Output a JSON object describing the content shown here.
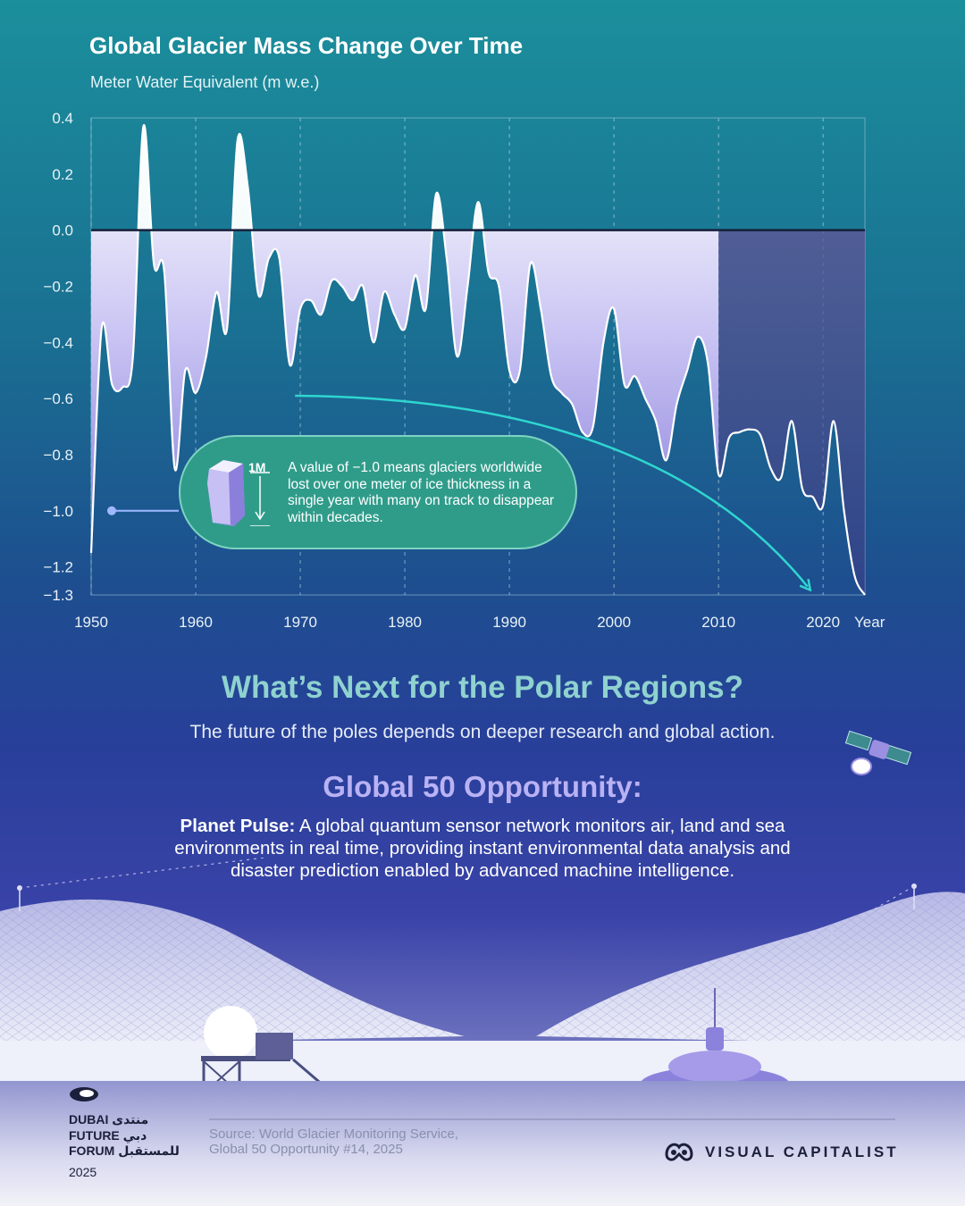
{
  "chart_data": {
    "type": "area",
    "title": "Global Glacier Mass Change Over Time",
    "subtitle": "Meter Water Equivalent (m w.e.)",
    "ylabel": "",
    "xlabel": "Year",
    "xlim": [
      1950,
      2024
    ],
    "ylim": [
      -1.3,
      0.4
    ],
    "x_ticks": [
      "1950",
      "1960",
      "1970",
      "1980",
      "1990",
      "2000",
      "2010",
      "2020"
    ],
    "y_ticks": [
      {
        "value": 0.4,
        "label": "0.4"
      },
      {
        "value": 0.2,
        "label": "0.2"
      },
      {
        "value": 0.0,
        "label": "0.0"
      },
      {
        "value": -0.2,
        "label": "−0.2"
      },
      {
        "value": -0.4,
        "label": "−0.4"
      },
      {
        "value": -0.6,
        "label": "−0.6"
      },
      {
        "value": -0.8,
        "label": "−0.8"
      },
      {
        "value": -1.0,
        "label": "−1.0"
      },
      {
        "value": -1.2,
        "label": "−1.2"
      },
      {
        "value": -1.3,
        "label": "−1.3"
      }
    ],
    "grid": "vertical-dashed",
    "highlight_range": [
      2010,
      2024
    ],
    "series": [
      {
        "values": [
          [
            1950,
            -1.15
          ],
          [
            1951,
            -0.35
          ],
          [
            1952,
            -0.55
          ],
          [
            1953,
            -0.56
          ],
          [
            1954,
            -0.45
          ],
          [
            1955,
            0.37
          ],
          [
            1956,
            -0.12
          ],
          [
            1957,
            -0.15
          ],
          [
            1958,
            -0.85
          ],
          [
            1959,
            -0.5
          ],
          [
            1960,
            -0.58
          ],
          [
            1961,
            -0.45
          ],
          [
            1962,
            -0.22
          ],
          [
            1963,
            -0.35
          ],
          [
            1964,
            0.32
          ],
          [
            1965,
            0.15
          ],
          [
            1966,
            -0.23
          ],
          [
            1967,
            -0.1
          ],
          [
            1968,
            -0.1
          ],
          [
            1969,
            -0.48
          ],
          [
            1970,
            -0.28
          ],
          [
            1971,
            -0.25
          ],
          [
            1972,
            -0.3
          ],
          [
            1973,
            -0.18
          ],
          [
            1974,
            -0.2
          ],
          [
            1975,
            -0.25
          ],
          [
            1976,
            -0.2
          ],
          [
            1977,
            -0.4
          ],
          [
            1978,
            -0.22
          ],
          [
            1979,
            -0.3
          ],
          [
            1980,
            -0.35
          ],
          [
            1981,
            -0.16
          ],
          [
            1982,
            -0.28
          ],
          [
            1983,
            0.13
          ],
          [
            1984,
            -0.1
          ],
          [
            1985,
            -0.45
          ],
          [
            1986,
            -0.2
          ],
          [
            1987,
            0.1
          ],
          [
            1988,
            -0.15
          ],
          [
            1989,
            -0.2
          ],
          [
            1990,
            -0.5
          ],
          [
            1991,
            -0.5
          ],
          [
            1992,
            -0.12
          ],
          [
            1993,
            -0.28
          ],
          [
            1994,
            -0.52
          ],
          [
            1995,
            -0.58
          ],
          [
            1996,
            -0.62
          ],
          [
            1997,
            -0.72
          ],
          [
            1998,
            -0.7
          ],
          [
            1999,
            -0.4
          ],
          [
            2000,
            -0.28
          ],
          [
            2001,
            -0.55
          ],
          [
            2002,
            -0.52
          ],
          [
            2003,
            -0.6
          ],
          [
            2004,
            -0.68
          ],
          [
            2005,
            -0.82
          ],
          [
            2006,
            -0.62
          ],
          [
            2007,
            -0.5
          ],
          [
            2008,
            -0.38
          ],
          [
            2009,
            -0.48
          ],
          [
            2010,
            -0.87
          ],
          [
            2011,
            -0.74
          ],
          [
            2012,
            -0.72
          ],
          [
            2013,
            -0.71
          ],
          [
            2014,
            -0.73
          ],
          [
            2015,
            -0.85
          ],
          [
            2016,
            -0.88
          ],
          [
            2017,
            -0.68
          ],
          [
            2018,
            -0.92
          ],
          [
            2019,
            -0.95
          ],
          [
            2020,
            -0.98
          ],
          [
            2021,
            -0.68
          ],
          [
            2022,
            -1.0
          ],
          [
            2023,
            -1.23
          ],
          [
            2024,
            -1.3
          ]
        ]
      }
    ],
    "callout": {
      "scale_label": "1M",
      "text": "A value of −1.0 means glaciers worldwide lost over one meter of ice thickness in a single year with many on track to disappear within decades.",
      "points_to": -1.0
    }
  },
  "next": {
    "title": "What’s Next for the Polar Regions?",
    "subtitle": "The future of the poles depends on deeper research and global action."
  },
  "opportunity": {
    "title": "Global 50 Opportunity:",
    "lead": "Planet Pulse:",
    "body": "A global quantum sensor network monitors air, land and sea environments in real time, providing instant environmental data analysis and disaster prediction enabled by advanced machine intelligence."
  },
  "footer": {
    "org_line1": "DUBAI منتدى",
    "org_line2": "FUTURE دبي",
    "org_line3": "FORUM للمستقبل",
    "year": "2025",
    "source_line1": "Source:  World Glacier Monitoring Service,",
    "source_line2": "Global 50 Opportunity #14, 2025",
    "brand": "VISUAL CAPITALIST"
  },
  "colors": {
    "area_fill_top": "#ffffff",
    "area_fill_bottom": "#8a7fe0",
    "positive_fill": "#e8f6f8",
    "highlight_band": "#5a4f8c",
    "trend_arrow": "#2fd6d0",
    "callout_fill": "#2f9c8a"
  }
}
